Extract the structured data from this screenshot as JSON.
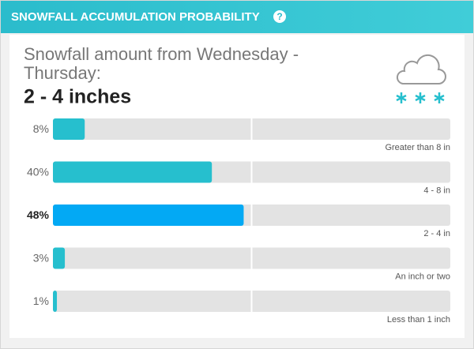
{
  "chart_data": {
    "type": "hbar",
    "title": "SNOWFALL ACCUMULATION PROBABILITY",
    "help_icon": "?",
    "subtitle": [
      "Snowfall amount from Wednesday -",
      "Thursday:"
    ],
    "headline": "2 - 4 inches",
    "categories": [
      "Greater than 8 in",
      "4 - 8 in",
      "2 - 4 in",
      "An inch or two",
      "Less than 1 inch"
    ],
    "values": [
      8,
      40,
      48,
      3,
      1
    ],
    "value_labels": [
      "8%",
      "40%",
      "48%",
      "3%",
      "1%"
    ],
    "colors": [
      "#26bfce",
      "#26bfce",
      "#03a9f4",
      "#26bfce",
      "#26bfce"
    ],
    "highlight_color": "#03a9f4",
    "xlim": [
      0,
      100
    ]
  }
}
